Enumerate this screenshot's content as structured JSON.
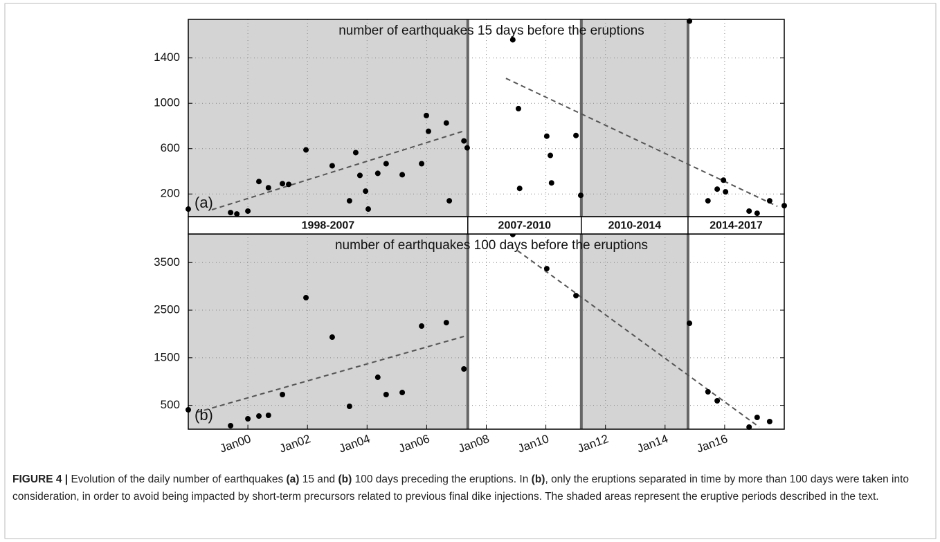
{
  "chart_data": [
    {
      "type": "scatter",
      "annotation": "number of earthquakes 15 days before the eruptions",
      "panel_label": "(a)",
      "xlim": [
        1998.0,
        2018.0
      ],
      "ylim": [
        0,
        1740
      ],
      "yticks": [
        200,
        600,
        1000,
        1400
      ],
      "grid": true,
      "color": "#000000",
      "points": {
        "x": [
          1998.0,
          1999.42,
          1999.63,
          2000.0,
          2000.37,
          2000.69,
          2001.16,
          2001.37,
          2001.95,
          2002.83,
          2003.41,
          2003.62,
          2003.76,
          2003.95,
          2004.04,
          2004.36,
          2004.64,
          2005.18,
          2005.83,
          2005.99,
          2006.06,
          2006.66,
          2006.76,
          2007.25,
          2007.36,
          2008.89,
          2009.08,
          2009.12,
          2010.03,
          2010.15,
          2010.19,
          2011.01,
          2011.17,
          2014.82,
          2015.44,
          2015.75,
          2015.96,
          2016.03,
          2016.82,
          2017.09,
          2017.51,
          2018.0
        ],
        "values": [
          67,
          36,
          24,
          49,
          310,
          255,
          291,
          285,
          589,
          449,
          140,
          565,
          364,
          225,
          67,
          382,
          467,
          370,
          467,
          892,
          753,
          826,
          140,
          668,
          607,
          1560,
          953,
          249,
          710,
          540,
          298,
          716,
          188,
          1725,
          140,
          243,
          322,
          219,
          49,
          30,
          140,
          97
        ]
      },
      "trends": [
        {
          "x": [
            1998.79,
            2007.29
          ],
          "values": [
            61,
            759
          ]
        },
        {
          "x": [
            2008.66,
            2017.77
          ],
          "values": [
            1220,
            91
          ]
        }
      ],
      "trend_color": "#555555"
    },
    {
      "type": "scatter",
      "annotation": "number of earthquakes 100 days before the eruptions",
      "panel_label": "(b)",
      "xlim": [
        1998.0,
        2018.0
      ],
      "ylim": [
        0,
        4100
      ],
      "yticks": [
        500,
        1500,
        2500,
        3500
      ],
      "xticks": [
        {
          "value": 2000,
          "label": "Jan00"
        },
        {
          "value": 2002,
          "label": "Jan02"
        },
        {
          "value": 2004,
          "label": "Jan04"
        },
        {
          "value": 2006,
          "label": "Jan06"
        },
        {
          "value": 2008,
          "label": "Jan08"
        },
        {
          "value": 2010,
          "label": "Jan10"
        },
        {
          "value": 2012,
          "label": "Jan12"
        },
        {
          "value": 2014,
          "label": "Jan14"
        },
        {
          "value": 2016,
          "label": "Jan16"
        }
      ],
      "grid": true,
      "color": "#000000",
      "points": {
        "x": [
          1998.0,
          1999.42,
          2000.0,
          2000.37,
          2000.69,
          2001.16,
          2001.95,
          2002.83,
          2003.41,
          2004.36,
          2004.64,
          2005.18,
          2005.83,
          2006.66,
          2007.25,
          2008.89,
          2010.03,
          2011.01,
          2014.82,
          2015.44,
          2015.75,
          2016.82,
          2017.09,
          2017.51
        ],
        "values": [
          407,
          73,
          218,
          276,
          291,
          727,
          2762,
          1933,
          480,
          1090,
          727,
          770,
          2166,
          2238,
          1265,
          4090,
          3372,
          2805,
          2224,
          785,
          596,
          44,
          247,
          160
        ]
      },
      "trends": [
        {
          "x": [
            1998.26,
            2007.25
          ],
          "values": [
            349,
            1948
          ]
        },
        {
          "x": [
            2009.05,
            2017.16
          ],
          "values": [
            3750,
            44
          ]
        }
      ],
      "trend_color": "#555555"
    }
  ],
  "periods": [
    {
      "label": "1998-2007",
      "end": 2007.38,
      "shaded": true
    },
    {
      "label": "2007-2010",
      "end": 2011.19,
      "shaded": false
    },
    {
      "label": "2010-2014",
      "end": 2014.77,
      "shaded": true
    },
    {
      "label": "2014-2017",
      "end": 2018.0,
      "shaded": false
    }
  ],
  "caption": [
    {
      "text": "FIGURE 4 |",
      "bold": true
    },
    {
      "text": " Evolution of the daily number of earthquakes ",
      "bold": false
    },
    {
      "text": "(a)",
      "bold": true
    },
    {
      "text": " 15 and ",
      "bold": false
    },
    {
      "text": "(b)",
      "bold": true
    },
    {
      "text": " 100 days preceding the eruptions. In ",
      "bold": false
    },
    {
      "text": "(b)",
      "bold": true
    },
    {
      "text": ", only the eruptions separated in time by more than 100 days were taken into consideration, in order to avoid being impacted by short-term precursors related to previous final dike injections. The shaded areas represent the eruptive periods described in the text.",
      "bold": false
    }
  ]
}
